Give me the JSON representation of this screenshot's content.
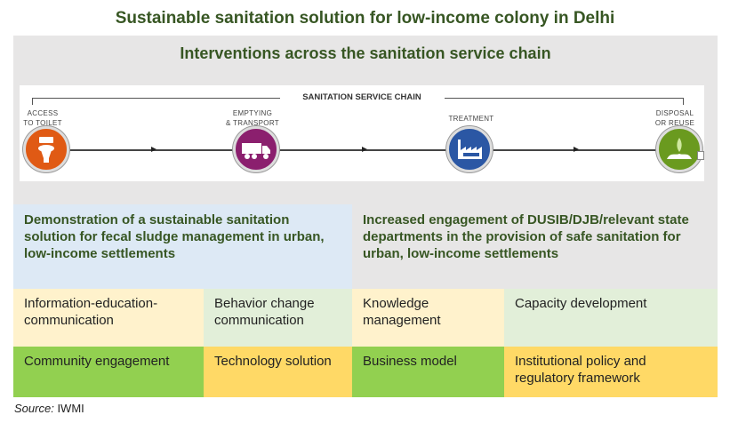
{
  "title": "Sustainable sanitation solution for low-income colony in Delhi",
  "subtitle": "Interventions across the sanitation service chain",
  "chain": {
    "heading": "SANITATION SERVICE CHAIN",
    "stages": [
      {
        "label": "ACCESS\nTO TOILET",
        "icon": "toilet-icon",
        "color": "#e05a14"
      },
      {
        "label": "EMPTYING\n& TRANSPORT",
        "icon": "truck-icon",
        "color": "#8b1f6e"
      },
      {
        "label": "TREATMENT",
        "icon": "factory-icon",
        "color": "#2b57a4"
      },
      {
        "label": "DISPOSAL\nOR REUSE",
        "icon": "plant-icon",
        "color": "#6a9a1f"
      }
    ]
  },
  "blocks": {
    "left": "Demonstration of a sustainable sanitation solution for fecal sludge management in urban, low-income settlements",
    "right": "Increased engagement of DUSIB/DJB/relevant state departments in the provision of safe sanitation for urban, low-income settlements"
  },
  "rows": [
    [
      "Information-education-communication",
      "Behavior change communication",
      "Knowledge management",
      "Capacity development"
    ],
    [
      "Community engagement",
      "Technology solution",
      "Business model",
      "Institutional policy and regulatory framework"
    ]
  ],
  "source_label": "Source:",
  "source_value": "IWMI"
}
